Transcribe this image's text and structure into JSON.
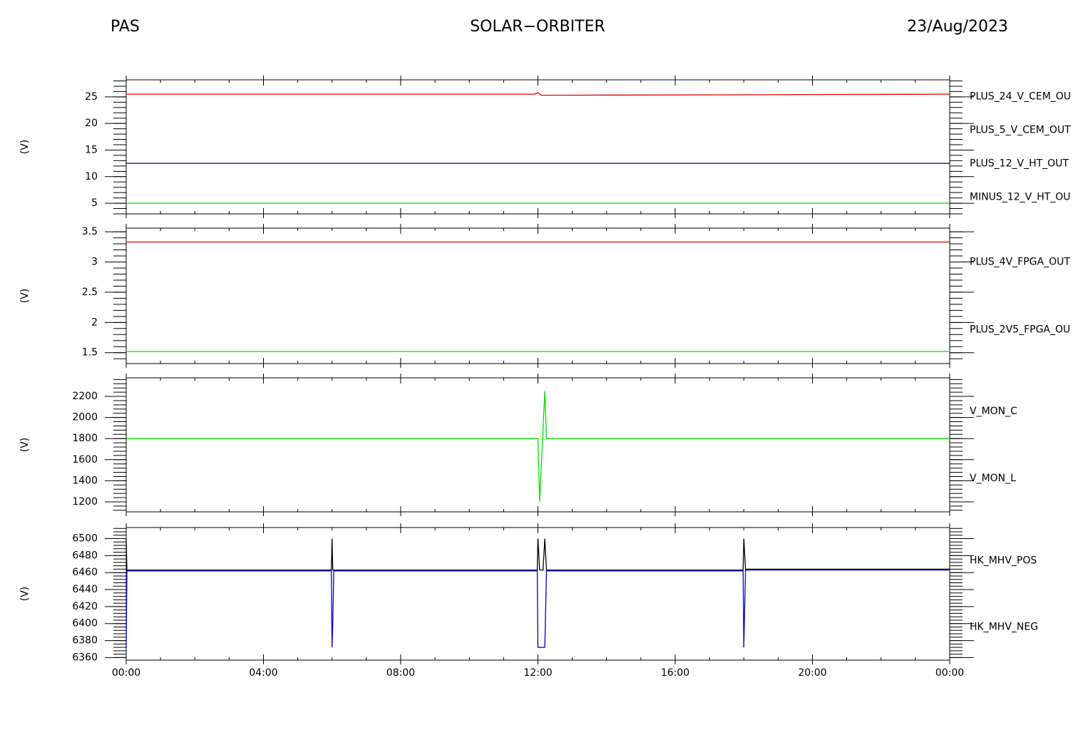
{
  "header": {
    "left": "PAS",
    "center": "SOLAR−ORBITER",
    "right": "23/Aug/2023"
  },
  "chart_data": [
    {
      "type": "line",
      "y_label": "(V)",
      "xlim": [
        0,
        24
      ],
      "xticks": [
        0,
        4,
        8,
        12,
        16,
        20,
        24
      ],
      "ylim": [
        3,
        28.2
      ],
      "yticks": [
        5,
        10,
        15,
        20,
        25
      ],
      "x": [
        0,
        11.9,
        12.0,
        12.1,
        24
      ],
      "series": [
        {
          "name": "PLUS_24_V_CEM_OU",
          "color": "#e00000",
          "values": [
            25.5,
            25.5,
            25.8,
            25.3,
            25.5
          ]
        },
        {
          "name": "PLUS_5_V_CEM_OUT",
          "color": "#00e000",
          "values": [
            5,
            5,
            5,
            5,
            5
          ]
        },
        {
          "name": "PLUS_12_V_HT_OUT",
          "color": "#000080",
          "values": [
            12.5,
            12.5,
            12.5,
            12.5,
            12.5
          ]
        },
        {
          "name": "MINUS_12_V_HT_OU",
          "color": "#000000",
          "values": [
            null,
            null,
            null,
            null,
            null
          ]
        }
      ]
    },
    {
      "type": "line",
      "y_label": "(V)",
      "xlim": [
        0,
        24
      ],
      "xticks": [
        0,
        4,
        8,
        12,
        16,
        20,
        24
      ],
      "ylim": [
        1.32,
        3.56
      ],
      "yticks": [
        1.5,
        2.0,
        2.5,
        3.0,
        3.5
      ],
      "x": [
        0,
        24
      ],
      "series": [
        {
          "name": "PLUS_4V_FPGA_OUT",
          "color": "#e00000",
          "values": [
            3.33,
            3.33
          ]
        },
        {
          "name": "PLUS_2V5_FPGA_OU",
          "color": "#00e000",
          "values": [
            1.52,
            1.52
          ]
        }
      ]
    },
    {
      "type": "line",
      "y_label": "(V)",
      "xlim": [
        0,
        24
      ],
      "xticks": [
        0,
        4,
        8,
        12,
        16,
        20,
        24
      ],
      "ylim": [
        1105,
        2376
      ],
      "yticks": [
        1200,
        1400,
        1600,
        1800,
        2000,
        2200
      ],
      "x": [
        0,
        12.0,
        12.05,
        12.2,
        12.25,
        24
      ],
      "series": [
        {
          "name": "V_MON_C",
          "color": "#e00000",
          "values": [
            null,
            null,
            null,
            null,
            null,
            null
          ]
        },
        {
          "name": "V_MON_L",
          "color": "#00e000",
          "values": [
            1800,
            1800,
            1200,
            2250,
            1800,
            1800
          ]
        }
      ]
    },
    {
      "type": "line",
      "y_label": "(V)",
      "xlim": [
        0,
        24
      ],
      "xticks": [
        {
          "value": 0,
          "label": "00:00"
        },
        {
          "value": 4,
          "label": "04:00"
        },
        {
          "value": 8,
          "label": "08:00"
        },
        {
          "value": 12,
          "label": "12:00"
        },
        {
          "value": 16,
          "label": "16:00"
        },
        {
          "value": 20,
          "label": "20:00"
        },
        {
          "value": 24,
          "label": "00:00"
        }
      ],
      "ylim": [
        6357,
        6513
      ],
      "yticks": [
        6360,
        6380,
        6400,
        6420,
        6440,
        6460,
        6480,
        6500
      ],
      "x": [
        0,
        0.02,
        0.05,
        5.98,
        6.0,
        6.02,
        6.05,
        11.98,
        12.0,
        12.05,
        12.15,
        12.2,
        12.25,
        17.98,
        18.0,
        18.05,
        24
      ],
      "series": [
        {
          "name": "HK_MHV_POS",
          "color": "#000000",
          "values": [
            6500,
            6463,
            6463,
            6463,
            6500,
            6463,
            6463,
            6463,
            6500,
            6463,
            6463,
            6500,
            6463,
            6463,
            6500,
            6464,
            6464
          ]
        },
        {
          "name": "HK_MHV_NEG",
          "color": "#0000cc",
          "values": [
            6372,
            6462,
            6462,
            6462,
            6372,
            6400,
            6462,
            6462,
            6372,
            6372,
            6372,
            6372,
            6462,
            6462,
            6372,
            6463,
            6463
          ]
        }
      ]
    }
  ]
}
